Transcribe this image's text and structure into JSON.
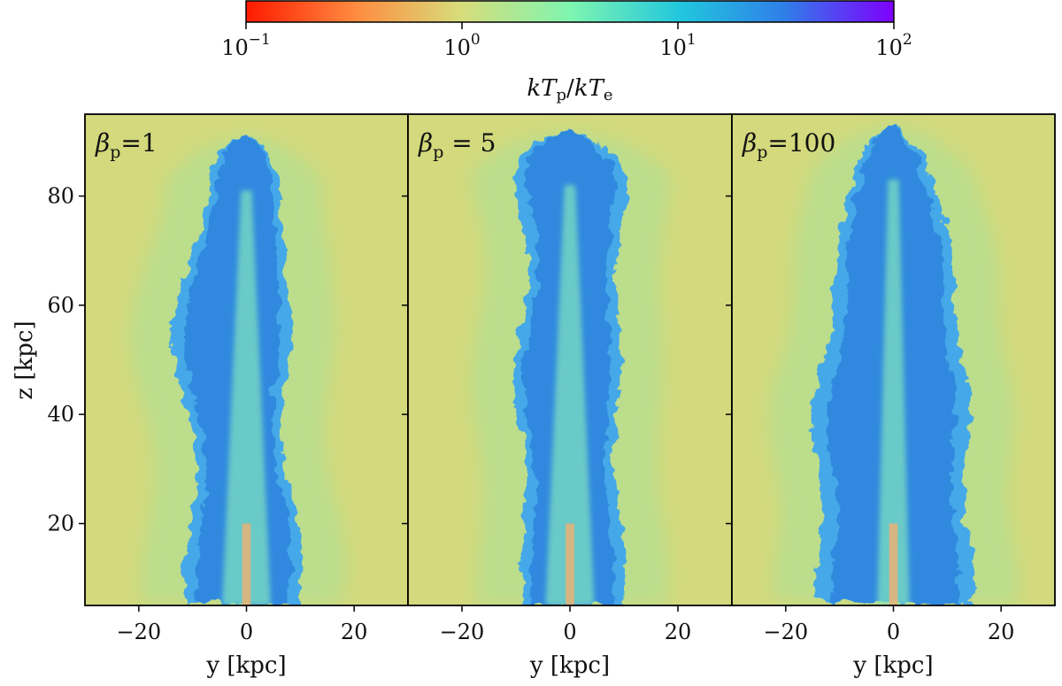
{
  "chart_data": {
    "type": "heatmap",
    "colorbar": {
      "label": "kT_p / kT_e",
      "label_parts": {
        "k": "k",
        "T": "T",
        "p": "p",
        "slash": "/",
        "e": "e"
      },
      "scale": "log",
      "range": [
        0.1,
        100
      ],
      "colormap": "rainbow_r",
      "ticks": [
        {
          "base": "10",
          "exp": "−1"
        },
        {
          "base": "10",
          "exp": "0"
        },
        {
          "base": "10",
          "exp": "1"
        },
        {
          "base": "10",
          "exp": "2"
        }
      ]
    },
    "xlabel": "y [kpc]",
    "ylabel": "z [kpc]",
    "xlim": [
      -30,
      30
    ],
    "ylim": [
      5,
      95
    ],
    "xticks": [
      "−20",
      "0",
      "20"
    ],
    "yticks": [
      "20",
      "40",
      "60",
      "80"
    ],
    "panels": [
      {
        "beta_symbol": "β",
        "sub": "p",
        "value_text": "=1",
        "beta_p": 1
      },
      {
        "beta_symbol": "β",
        "sub": "p",
        "value_text": " = 5",
        "beta_p": 5
      },
      {
        "beta_symbol": "β",
        "sub": "p",
        "value_text": "=100",
        "beta_p": 100
      }
    ],
    "colors": {
      "background": "#d3d97c",
      "halo": "#9fe3a1",
      "lobe": "#2f86de",
      "lobe_mid": "#44a8e8",
      "spine": "#7ee0c0",
      "core": "#f0b070"
    }
  }
}
